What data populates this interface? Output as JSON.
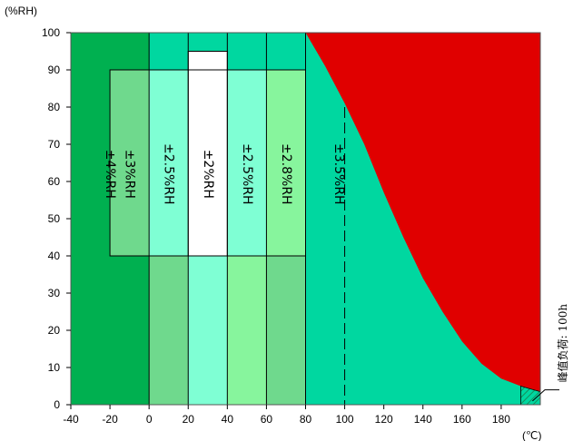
{
  "chart_data": {
    "type": "area",
    "y_unit_label": "(%RH)",
    "x_unit_label": "(℃)",
    "xlim": [
      -40,
      200
    ],
    "ylim": [
      0,
      100
    ],
    "x_ticks": [
      "-40",
      "-20",
      "0",
      "20",
      "40",
      "60",
      "80",
      "100",
      "120",
      "140",
      "160",
      "180"
    ],
    "y_ticks": [
      "0",
      "10",
      "20",
      "30",
      "40",
      "50",
      "60",
      "70",
      "80",
      "90",
      "100"
    ],
    "zones": [
      {
        "label": "±4%RH",
        "x_range": [
          -40,
          0
        ],
        "label_x": -20
      },
      {
        "label": "±3%RH",
        "x_range": [
          -20,
          0
        ],
        "y_range": [
          40,
          90
        ],
        "label_x": -10
      },
      {
        "label": "±2.5%RH",
        "x_range": [
          0,
          20
        ],
        "y_range": [
          40,
          90
        ],
        "label_x": 10
      },
      {
        "label": "±2%RH",
        "x_range": [
          20,
          40
        ],
        "y_range": [
          40,
          95
        ],
        "label_x": 30
      },
      {
        "label": "±2.5%RH",
        "x_range": [
          40,
          60
        ],
        "y_range": [
          40,
          90
        ],
        "label_x": 50
      },
      {
        "label": "±2.8%RH",
        "x_range": [
          60,
          80
        ],
        "y_range": [
          40,
          90
        ],
        "label_x": 70
      },
      {
        "label": "±3.5%RH",
        "x_range": [
          80,
          200
        ],
        "label_x": 97
      }
    ],
    "limit_curve": {
      "x": [
        80,
        90,
        100,
        110,
        120,
        130,
        140,
        150,
        160,
        170,
        180,
        190,
        200
      ],
      "y": [
        100,
        91,
        81,
        70,
        57,
        45,
        34,
        25,
        17,
        11,
        7,
        5,
        3.5
      ]
    },
    "dashed_line_x": 100,
    "peak_load_note": "峰值负荷: 100h",
    "peak_load_region": {
      "x_range": [
        190,
        200
      ],
      "y_max": 5
    },
    "colors": {
      "dark_green": "#00b050",
      "medium_green": "#6fd98d",
      "aqua": "#7fffd4",
      "light_green": "#87f59d",
      "teal": "#00d7a0",
      "white": "#ffffff",
      "red": "#e00000",
      "axis": "#000000"
    }
  }
}
